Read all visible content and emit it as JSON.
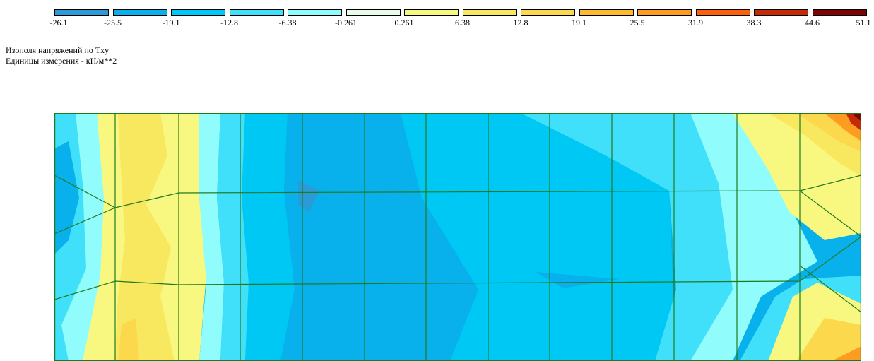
{
  "legend": {
    "colors": [
      "#2b9bd8",
      "#08b0ec",
      "#00c8f5",
      "#40e0fa",
      "#90fcfc",
      "#e8fde8",
      "#f8f880",
      "#f8e860",
      "#fcd84c",
      "#fcba2c",
      "#fc9c20",
      "#fc6008",
      "#c42a06",
      "#7c0404"
    ],
    "ticks": [
      "-26.1",
      "-25.5",
      "-19.1",
      "-12.8",
      "-6.38",
      "-0.261",
      "0.261",
      "6.38",
      "12.8",
      "19.1",
      "25.5",
      "31.9",
      "38.3",
      "44.6",
      "51.1"
    ]
  },
  "captions": {
    "line1": "Изополя напряжений по Txy",
    "line2": "Единицы измерения - кН/м**2"
  }
}
